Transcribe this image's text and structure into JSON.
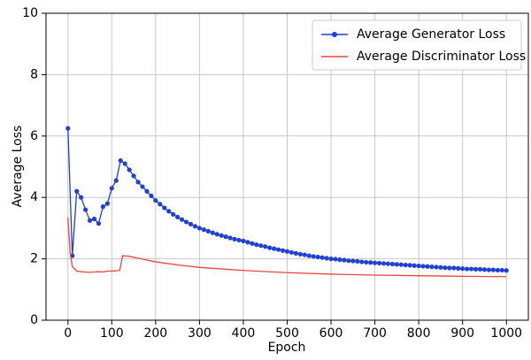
{
  "chart_data": {
    "type": "line",
    "x_label": "Epoch",
    "y_label": "Average Loss",
    "xlim": [
      -50,
      1050
    ],
    "ylim": [
      0,
      10
    ],
    "xticks": [
      0,
      100,
      200,
      300,
      400,
      500,
      600,
      700,
      800,
      900,
      1000
    ],
    "yticks": [
      0,
      2,
      4,
      6,
      8,
      10
    ],
    "grid": true,
    "legend": "upper right",
    "series": [
      {
        "name": "Average Generator Loss",
        "color": "#1f3fd8",
        "marker": true,
        "x": [
          0,
          10,
          20,
          30,
          40,
          50,
          60,
          70,
          80,
          90,
          100,
          110,
          120,
          130,
          140,
          150,
          160,
          170,
          180,
          190,
          200,
          210,
          220,
          230,
          240,
          250,
          260,
          270,
          280,
          290,
          300,
          310,
          320,
          330,
          340,
          350,
          360,
          370,
          380,
          390,
          400,
          410,
          420,
          430,
          440,
          450,
          460,
          470,
          480,
          490,
          500,
          510,
          520,
          530,
          540,
          550,
          560,
          570,
          580,
          590,
          600,
          610,
          620,
          630,
          640,
          650,
          660,
          670,
          680,
          690,
          700,
          710,
          720,
          730,
          740,
          750,
          760,
          770,
          780,
          790,
          800,
          810,
          820,
          830,
          840,
          850,
          860,
          870,
          880,
          890,
          900,
          910,
          920,
          930,
          940,
          950,
          960,
          970,
          980,
          990,
          1000
        ],
        "values": [
          6.25,
          2.1,
          4.2,
          4.0,
          3.6,
          3.25,
          3.3,
          3.15,
          3.7,
          3.8,
          4.3,
          4.55,
          5.2,
          5.1,
          4.9,
          4.7,
          4.5,
          4.35,
          4.2,
          4.05,
          3.9,
          3.78,
          3.66,
          3.55,
          3.45,
          3.36,
          3.28,
          3.2,
          3.13,
          3.06,
          3.0,
          2.95,
          2.9,
          2.85,
          2.8,
          2.76,
          2.72,
          2.68,
          2.64,
          2.61,
          2.58,
          2.54,
          2.5,
          2.46,
          2.43,
          2.4,
          2.36,
          2.33,
          2.3,
          2.27,
          2.24,
          2.21,
          2.18,
          2.15,
          2.13,
          2.1,
          2.08,
          2.06,
          2.04,
          2.02,
          2.0,
          1.99,
          1.97,
          1.96,
          1.94,
          1.93,
          1.92,
          1.9,
          1.89,
          1.88,
          1.87,
          1.86,
          1.85,
          1.84,
          1.83,
          1.82,
          1.81,
          1.8,
          1.79,
          1.78,
          1.77,
          1.76,
          1.75,
          1.74,
          1.73,
          1.72,
          1.71,
          1.7,
          1.7,
          1.69,
          1.68,
          1.67,
          1.67,
          1.66,
          1.66,
          1.65,
          1.64,
          1.64,
          1.63,
          1.63,
          1.62
        ]
      },
      {
        "name": "Average Discriminator Loss",
        "color": "#e8473a",
        "marker": false,
        "x": [
          0,
          5,
          10,
          20,
          30,
          40,
          50,
          60,
          70,
          80,
          90,
          100,
          110,
          118,
          125,
          140,
          160,
          200,
          250,
          300,
          350,
          400,
          500,
          600,
          700,
          800,
          900,
          1000
        ],
        "values": [
          3.35,
          2.2,
          1.75,
          1.6,
          1.58,
          1.57,
          1.56,
          1.57,
          1.58,
          1.57,
          1.6,
          1.6,
          1.61,
          1.62,
          2.1,
          2.08,
          2.02,
          1.9,
          1.8,
          1.72,
          1.67,
          1.62,
          1.55,
          1.5,
          1.47,
          1.45,
          1.43,
          1.42
        ]
      }
    ]
  }
}
